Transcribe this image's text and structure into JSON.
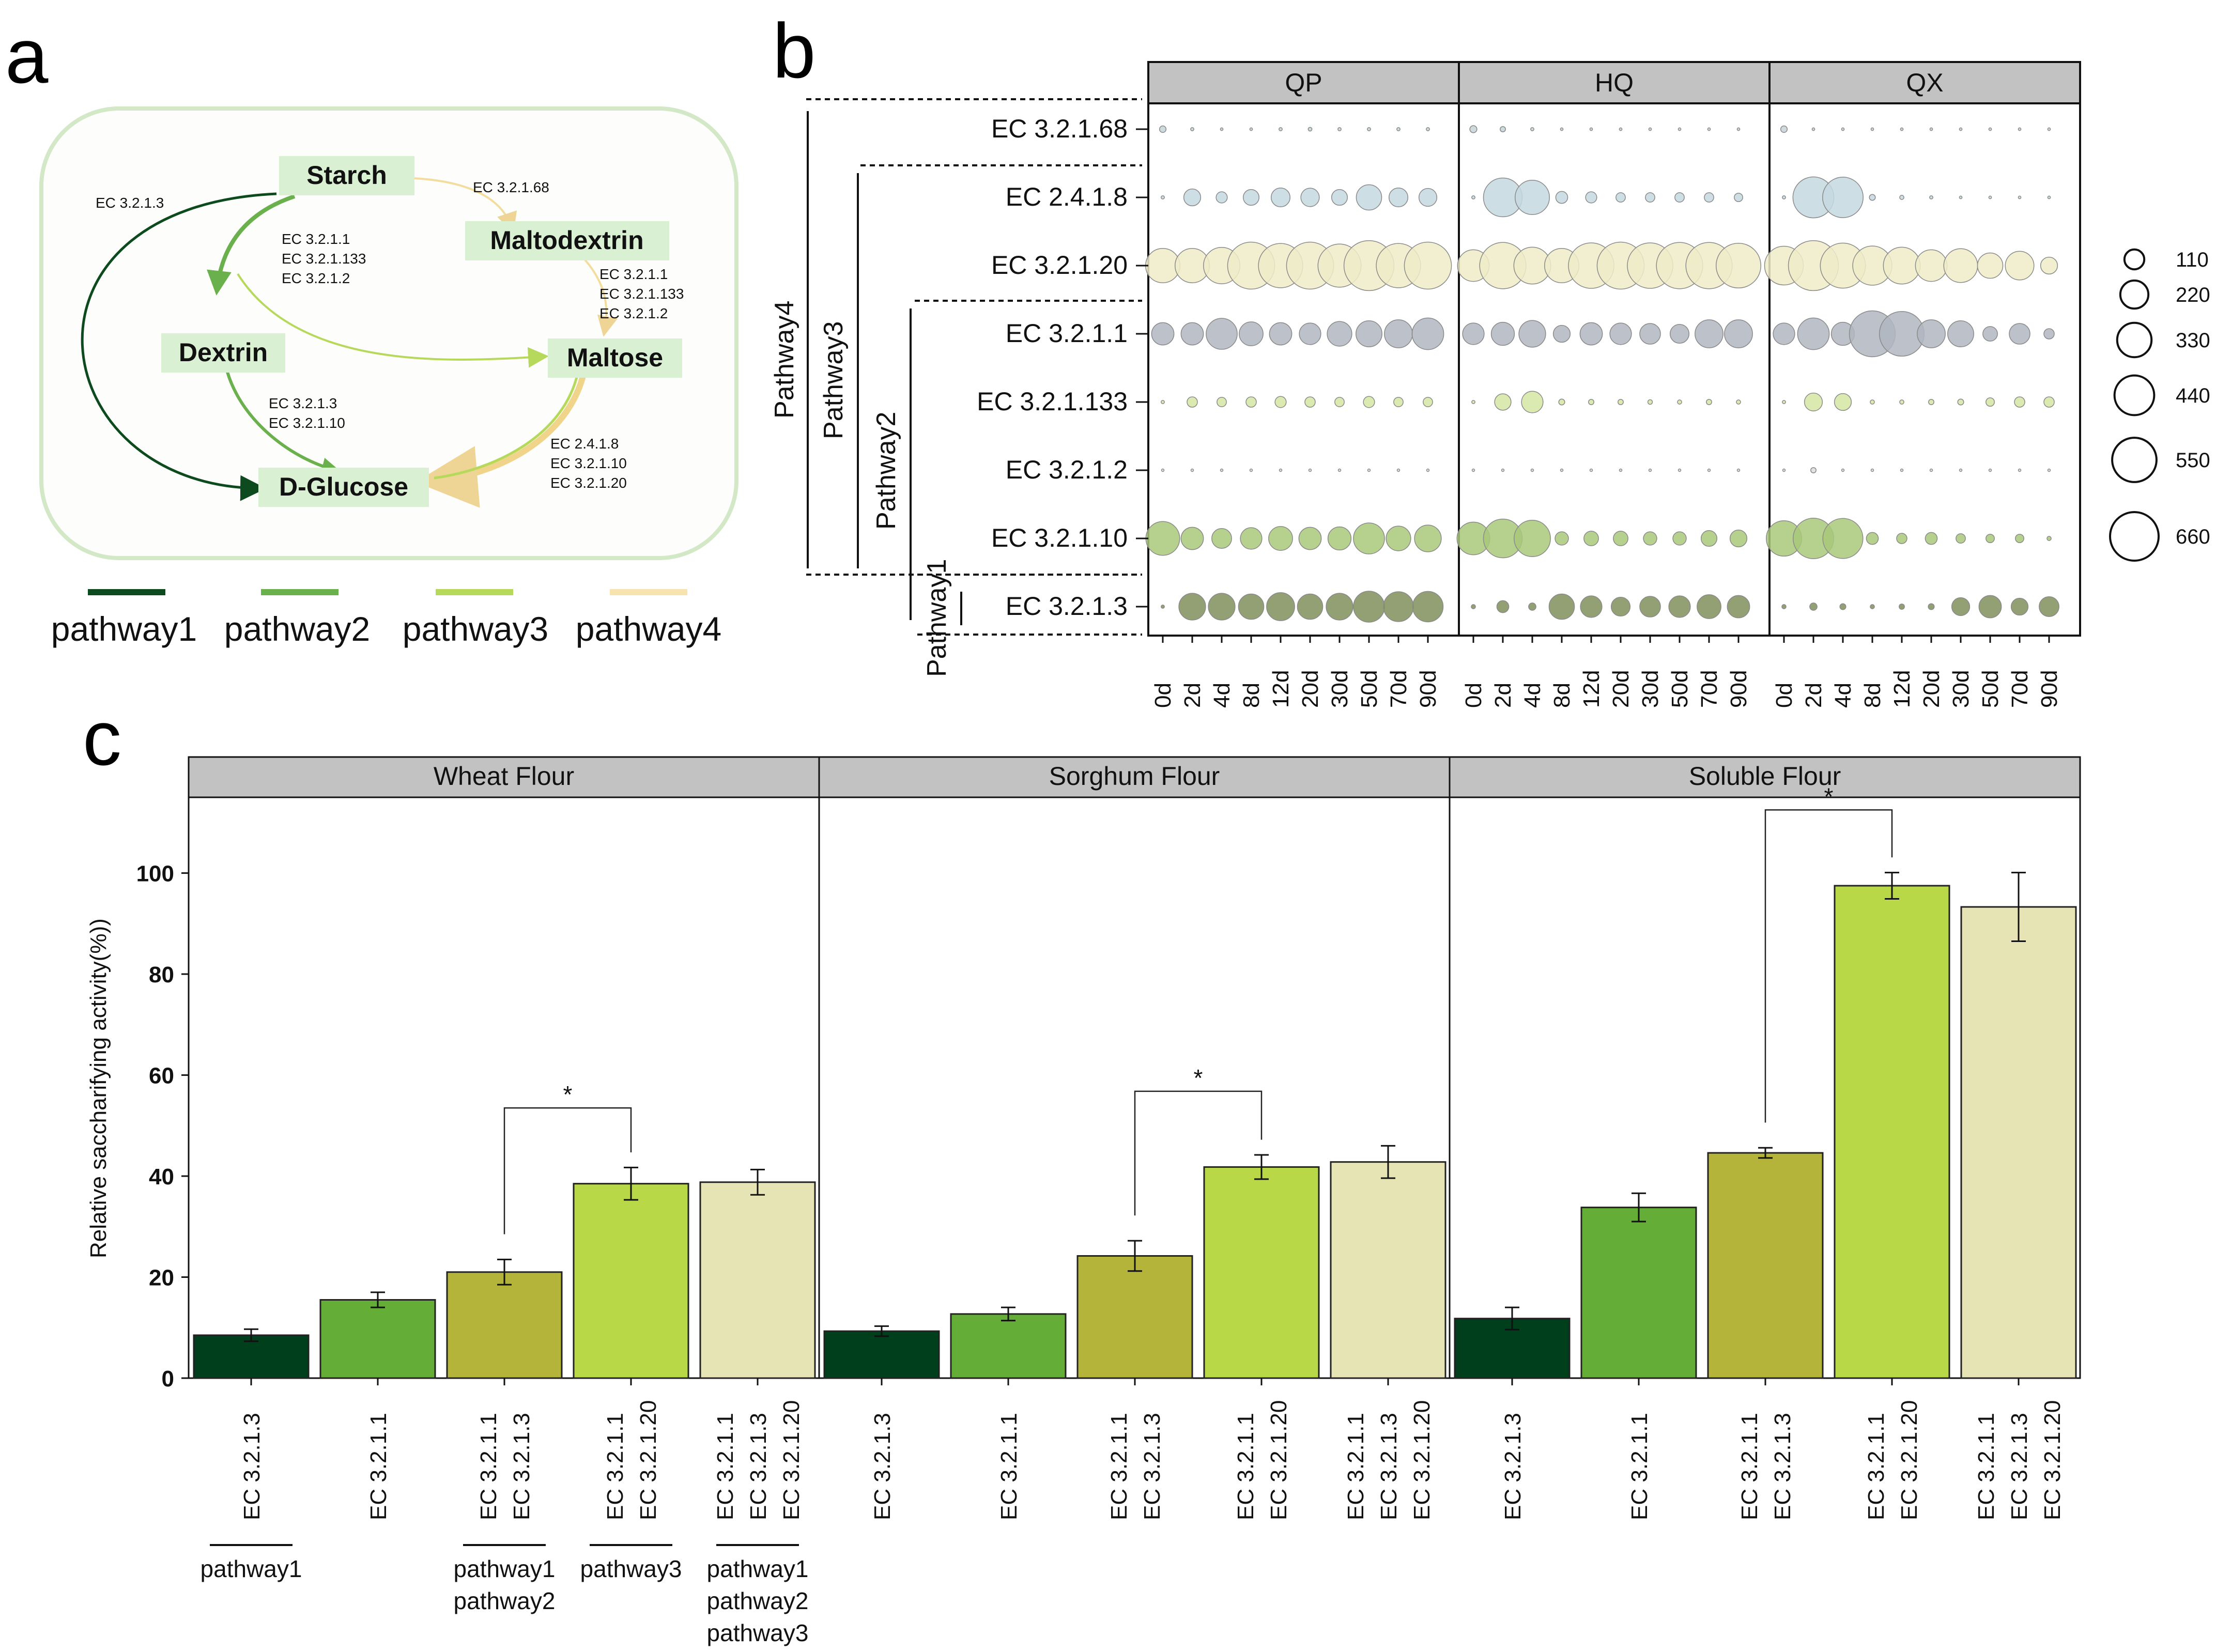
{
  "panel_labels": {
    "a": "a",
    "b": "b",
    "c": "c"
  },
  "panel_a": {
    "nodes": {
      "starch": "Starch",
      "maltodextrin": "Maltodextrin",
      "dextrin": "Dextrin",
      "maltose": "Maltose",
      "glucose": "D-Glucose"
    },
    "edge_labels": {
      "starch_glucose": "EC 3.2.1.3",
      "starch_maltodextrin": "EC 3.2.1.68",
      "starch_dextrin": [
        "EC 3.2.1.1",
        "EC 3.2.1.133",
        "EC 3.2.1.2"
      ],
      "maltodextrin_maltose": [
        "EC 3.2.1.1",
        "EC 3.2.1.133",
        "EC 3.2.1.2"
      ],
      "dextrin_glucose": [
        "EC 3.2.1.3",
        "EC 3.2.1.10"
      ],
      "maltose_glucose": [
        "EC 2.4.1.8",
        "EC 3.2.1.10",
        "EC 3.2.1.20"
      ]
    },
    "legend": [
      {
        "label": "pathway1",
        "color": "#0d4a1e"
      },
      {
        "label": "pathway2",
        "color": "#6ab04c"
      },
      {
        "label": "pathway3",
        "color": "#b7d95b"
      },
      {
        "label": "pathway4",
        "color": "#f6e3b0"
      }
    ]
  },
  "chart_data": [
    {
      "type": "bubble",
      "panel": "b",
      "facets": [
        "QP",
        "HQ",
        "QX"
      ],
      "x_categories": [
        "0d",
        "2d",
        "4d",
        "8d",
        "12d",
        "20d",
        "30d",
        "50d",
        "70d",
        "90d"
      ],
      "rows": [
        {
          "label": "EC 3.2.1.68",
          "color": "#c5d3d8",
          "values": {
            "QP": [
              12,
              3,
              2,
              2,
              3,
              4,
              3,
              3,
              3,
              3
            ],
            "HQ": [
              14,
              8,
              3,
              2,
              2,
              2,
              2,
              2,
              2,
              2
            ],
            "QX": [
              12,
              2,
              2,
              2,
              2,
              2,
              2,
              2,
              2,
              2
            ]
          }
        },
        {
          "label": "EC 2.4.1.8",
          "color": "#c5d8e0",
          "values": {
            "QP": [
              3,
              80,
              35,
              70,
              100,
              95,
              70,
              180,
              100,
              90
            ],
            "HQ": [
              3,
              420,
              330,
              40,
              35,
              25,
              25,
              25,
              25,
              20
            ],
            "QX": [
              3,
              470,
              460,
              10,
              5,
              3,
              2,
              2,
              2,
              2
            ]
          }
        },
        {
          "label": "EC 3.2.1.20",
          "color": "#efecc8",
          "values": {
            "QP": [
              330,
              330,
              370,
              620,
              550,
              620,
              520,
              700,
              550,
              620
            ],
            "HQ": [
              280,
              600,
              380,
              330,
              580,
              620,
              580,
              600,
              600,
              560
            ],
            "QX": [
              420,
              700,
              570,
              430,
              380,
              280,
              320,
              180,
              230,
              80
            ]
          }
        },
        {
          "label": "EC 3.2.1.1",
          "color": "#b0b6c1",
          "values": {
            "QP": [
              140,
              140,
              270,
              160,
              140,
              130,
              170,
              190,
              220,
              280
            ],
            "HQ": [
              130,
              150,
              200,
              80,
              140,
              130,
              120,
              100,
              220,
              220
            ],
            "QX": [
              130,
              280,
              150,
              590,
              560,
              220,
              190,
              60,
              120,
              30
            ]
          }
        },
        {
          "label": "EC 3.2.1.133",
          "color": "#d5e6a3",
          "values": {
            "QP": [
              3,
              30,
              25,
              30,
              35,
              30,
              25,
              35,
              25,
              25
            ],
            "HQ": [
              3,
              75,
              130,
              10,
              8,
              8,
              6,
              5,
              8,
              5
            ],
            "QX": [
              3,
              90,
              80,
              5,
              5,
              8,
              10,
              20,
              30,
              30
            ]
          }
        },
        {
          "label": "EC 3.2.1.2",
          "color": "#dddddd",
          "values": {
            "QP": [
              1,
              1,
              1,
              1,
              1,
              1,
              1,
              1,
              1,
              1
            ],
            "HQ": [
              1,
              1,
              1,
              1,
              1,
              1,
              1,
              1,
              1,
              1
            ],
            "QX": [
              1,
              8,
              1,
              1,
              1,
              1,
              1,
              1,
              1,
              1
            ]
          }
        },
        {
          "label": "EC 3.2.1.10",
          "color": "#a9c87a",
          "values": {
            "QP": [
              320,
              140,
              110,
              130,
              160,
              140,
              150,
              270,
              170,
              200
            ],
            "HQ": [
              300,
              420,
              370,
              50,
              60,
              60,
              50,
              50,
              70,
              80
            ],
            "QX": [
              350,
              460,
              450,
              40,
              30,
              40,
              25,
              20,
              20,
              5
            ]
          }
        },
        {
          "label": "EC 3.2.1.3",
          "color": "#7f8f5c",
          "values": {
            "QP": [
              3,
              200,
              200,
              180,
              220,
              180,
              200,
              270,
              250,
              260
            ],
            "HQ": [
              5,
              40,
              15,
              180,
              130,
              100,
              120,
              130,
              160,
              140
            ],
            "QX": [
              5,
              15,
              10,
              5,
              8,
              10,
              90,
              140,
              80,
              110
            ]
          }
        }
      ],
      "size_legend": [
        110,
        220,
        330,
        440,
        550,
        660
      ],
      "pathway_brackets": [
        "Pathway4",
        "Pathway3",
        "Pathway2",
        "Pathway1"
      ]
    },
    {
      "type": "bar",
      "panel": "c",
      "ylabel": "Relative saccharifying activity(%))",
      "ylim": [
        0,
        115
      ],
      "yticks": [
        0,
        20,
        40,
        60,
        80,
        100
      ],
      "facets": [
        {
          "name": "Wheat Flour",
          "values": [
            8.5,
            15.5,
            21,
            38.5,
            38.8
          ],
          "errors": [
            1.2,
            1.5,
            2.5,
            3.2,
            2.5
          ],
          "sig": {
            "from": 2,
            "to": 3,
            "label": "*"
          }
        },
        {
          "name": "Sorghum Flour",
          "values": [
            9.3,
            12.7,
            24.2,
            41.8,
            42.8
          ],
          "errors": [
            1.0,
            1.3,
            3.0,
            2.4,
            3.2
          ],
          "sig": {
            "from": 2,
            "to": 3,
            "label": "*"
          }
        },
        {
          "name": "Soluble Flour",
          "values": [
            11.8,
            33.8,
            44.6,
            97.5,
            93.3
          ],
          "errors": [
            2.2,
            2.8,
            1.0,
            2.6,
            6.8
          ],
          "sig": {
            "from": 2,
            "to": 3,
            "label": "*"
          }
        }
      ],
      "categories": [
        [
          "EC 3.2.1.3"
        ],
        [
          "EC 3.2.1.1"
        ],
        [
          "EC 3.2.1.1",
          "EC 3.2.1.3"
        ],
        [
          "EC 3.2.1.1",
          "EC 3.2.1.20"
        ],
        [
          "EC 3.2.1.1",
          "EC 3.2.1.3",
          "EC 3.2.1.20"
        ]
      ],
      "colors": [
        "#003f1c",
        "#64ad36",
        "#b4b43a",
        "#b8d848",
        "#e6e4b4"
      ],
      "pathway_notes": [
        {
          "lines": [
            "pathway1"
          ]
        },
        {
          "lines": []
        },
        {
          "lines": [
            "pathway1",
            "pathway2"
          ]
        },
        {
          "lines": [
            "pathway3"
          ]
        },
        {
          "lines": [
            "pathway1",
            "pathway2",
            "pathway3"
          ]
        }
      ]
    }
  ]
}
